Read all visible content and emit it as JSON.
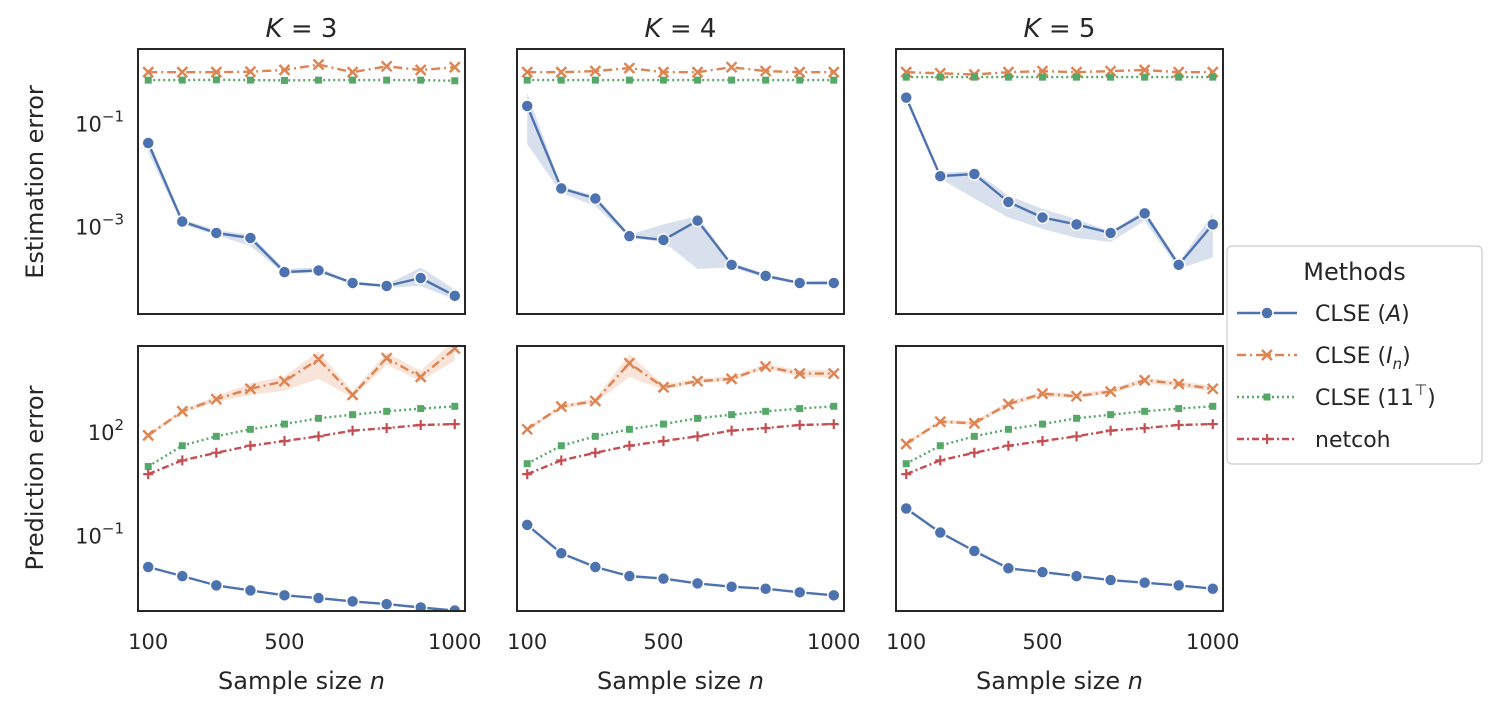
{
  "chart_data": {
    "type": "line",
    "ylabels": [
      "Estimation error",
      "Prediction error"
    ],
    "xlabel": "Sample size n",
    "x": [
      100,
      200,
      300,
      400,
      500,
      600,
      700,
      800,
      900,
      1000
    ],
    "xticks": [
      {
        "value": 100,
        "label": "100"
      },
      {
        "value": 500,
        "label": "500"
      },
      {
        "value": 1000,
        "label": "1000"
      }
    ],
    "xlim": [
      70,
      1030
    ],
    "scale": "log",
    "est_ylim_log10": [
      -4.7,
      0.45
    ],
    "pred_ylim_log10": [
      -3.2,
      4.5
    ],
    "est_yticks": [
      {
        "exp": -1,
        "label": "10",
        "sup": "−1"
      },
      {
        "exp": -3,
        "label": "10",
        "sup": "−3"
      }
    ],
    "pred_yticks": [
      {
        "exp": 2,
        "label": "10",
        "sup": "2"
      },
      {
        "exp": -1,
        "label": "10",
        "sup": "−1"
      }
    ],
    "legend": {
      "title": "Methods",
      "position": "right",
      "entries": [
        {
          "key": "clse_a",
          "pre": "CLSE (",
          "sym": "A",
          "sub": "",
          "sup": "",
          "post": ")"
        },
        {
          "key": "clse_in",
          "pre": "CLSE (",
          "sym": "I",
          "sub": "n",
          "sup": "",
          "post": ")"
        },
        {
          "key": "clse_11",
          "pre": "CLSE (11",
          "sym": "",
          "sub": "",
          "sup": "⊤",
          "post": ")"
        },
        {
          "key": "netcoh",
          "pre": "netcoh",
          "sym": "",
          "sub": "",
          "sup": "",
          "post": ""
        }
      ]
    },
    "series_style": {
      "clse_a": {
        "color": "#4c72b0",
        "dash": "",
        "marker": "circle"
      },
      "clse_in": {
        "color": "#dd8452",
        "dash": "9,4,2,4",
        "marker": "x"
      },
      "clse_11": {
        "color": "#55a868",
        "dash": "2,3",
        "marker": "square"
      },
      "netcoh": {
        "color": "#c44e52",
        "dash": "7,3,2,3",
        "marker": "plus"
      }
    },
    "panels": [
      {
        "title": "K = 3",
        "row": "estimation",
        "series": {
          "clse_a": [
            0.042,
            0.00125,
            0.00075,
            0.0006,
            0.00013,
            0.00014,
            8e-05,
            7e-05,
            0.0001,
            4.5e-05
          ],
          "clse_in": [
            1.0,
            1.0,
            1.0,
            1.02,
            1.1,
            1.4,
            1.0,
            1.3,
            1.1,
            1.25
          ],
          "clse_11": [
            0.7,
            0.7,
            0.71,
            0.7,
            0.69,
            0.7,
            0.7,
            0.7,
            0.7,
            0.68
          ]
        },
        "band": {
          "series": "clse_a",
          "lower": [
            0.028,
            0.0011,
            0.00068,
            0.00042,
            0.00012,
            0.00013,
            7.5e-05,
            6.5e-05,
            7e-05,
            3.8e-05
          ],
          "upper": [
            0.05,
            0.0014,
            0.00085,
            0.0007,
            0.00015,
            0.00016,
            8.5e-05,
            7.5e-05,
            0.00016,
            6e-05
          ]
        }
      },
      {
        "title": "K = 4",
        "row": "estimation",
        "series": {
          "clse_a": [
            0.22,
            0.0055,
            0.0035,
            0.00065,
            0.00055,
            0.0013,
            0.00018,
            0.00011,
            8e-05,
            8e-05
          ],
          "clse_in": [
            1.0,
            1.0,
            1.05,
            1.2,
            1.0,
            1.0,
            1.25,
            1.05,
            1.0,
            1.0
          ],
          "clse_11": [
            0.7,
            0.7,
            0.7,
            0.7,
            0.7,
            0.7,
            0.7,
            0.7,
            0.7,
            0.7
          ]
        },
        "band": {
          "series": "clse_a",
          "lower": [
            0.04,
            0.0045,
            0.0025,
            0.0006,
            0.0005,
            0.00015,
            0.00016,
            0.0001,
            7.5e-05,
            7.5e-05
          ],
          "upper": [
            0.4,
            0.006,
            0.004,
            0.0007,
            0.0011,
            0.0016,
            0.0002,
            0.00012,
            8.5e-05,
            9e-05
          ]
        }
      },
      {
        "title": "K = 5",
        "row": "estimation",
        "series": {
          "clse_a": [
            0.32,
            0.0095,
            0.0105,
            0.003,
            0.0015,
            0.0011,
            0.00075,
            0.0018,
            0.00018,
            0.0011
          ],
          "clse_in": [
            1.0,
            0.95,
            0.9,
            1.0,
            1.05,
            1.0,
            1.05,
            1.1,
            1.0,
            1.0
          ],
          "clse_11": [
            0.8,
            0.8,
            0.8,
            0.8,
            0.8,
            0.8,
            0.8,
            0.8,
            0.8,
            0.8
          ]
        },
        "band": {
          "series": "clse_a",
          "lower": [
            0.28,
            0.0085,
            0.0035,
            0.0015,
            0.0009,
            0.0006,
            0.0005,
            0.0013,
            0.00015,
            0.00025
          ],
          "upper": [
            0.36,
            0.011,
            0.012,
            0.004,
            0.0022,
            0.0014,
            0.0008,
            0.0021,
            0.0002,
            0.0018
          ]
        }
      },
      {
        "title": "",
        "row": "prediction",
        "series": {
          "clse_a": [
            0.012,
            0.0065,
            0.0035,
            0.0025,
            0.0018,
            0.0015,
            0.0012,
            0.001,
            0.0008,
            0.00065
          ],
          "clse_in": [
            80,
            400,
            900,
            1800,
            3000,
            13000,
            1200,
            14000,
            4000,
            27000
          ],
          "clse_11": [
            10,
            40,
            75,
            120,
            170,
            250,
            320,
            400,
            480,
            560
          ],
          "netcoh": [
            6,
            15,
            25,
            40,
            55,
            75,
            110,
            130,
            160,
            170
          ]
        },
        "band": {
          "series": "clse_in",
          "lower": [
            70,
            350,
            750,
            1200,
            1600,
            3500,
            1000,
            9000,
            3000,
            12000
          ],
          "upper": [
            95,
            450,
            1100,
            2600,
            4200,
            22000,
            1500,
            20000,
            6000,
            48000
          ]
        }
      },
      {
        "title": "",
        "row": "prediction",
        "series": {
          "clse_a": [
            0.2,
            0.03,
            0.012,
            0.0065,
            0.0055,
            0.004,
            0.0032,
            0.0028,
            0.0022,
            0.0018
          ],
          "clse_in": [
            120,
            550,
            800,
            10000,
            2000,
            3000,
            3500,
            8000,
            5000,
            5000
          ],
          "clse_11": [
            12,
            40,
            75,
            120,
            170,
            250,
            320,
            400,
            480,
            560
          ],
          "netcoh": [
            6,
            15,
            25,
            40,
            55,
            75,
            110,
            130,
            160,
            170
          ]
        },
        "band": {
          "series": "clse_in",
          "lower": [
            105,
            480,
            700,
            4000,
            1700,
            2600,
            3000,
            7000,
            4000,
            3800
          ],
          "upper": [
            140,
            620,
            950,
            18000,
            2400,
            3600,
            4200,
            9500,
            6200,
            6500
          ]
        }
      },
      {
        "title": "",
        "row": "prediction",
        "series": {
          "clse_a": [
            0.6,
            0.12,
            0.035,
            0.011,
            0.0085,
            0.0065,
            0.005,
            0.0042,
            0.0035,
            0.0028
          ],
          "clse_in": [
            45,
            200,
            180,
            650,
            1300,
            1100,
            1500,
            3200,
            2500,
            1800
          ],
          "clse_11": [
            12,
            40,
            75,
            120,
            170,
            250,
            320,
            400,
            480,
            560
          ],
          "netcoh": [
            6,
            15,
            25,
            40,
            55,
            75,
            110,
            130,
            160,
            170
          ]
        },
        "band": {
          "series": "clse_in",
          "lower": [
            40,
            180,
            160,
            550,
            1100,
            950,
            1300,
            2600,
            2100,
            1500
          ],
          "upper": [
            52,
            230,
            210,
            780,
            1500,
            1300,
            1800,
            3800,
            3000,
            2200
          ]
        }
      }
    ]
  }
}
